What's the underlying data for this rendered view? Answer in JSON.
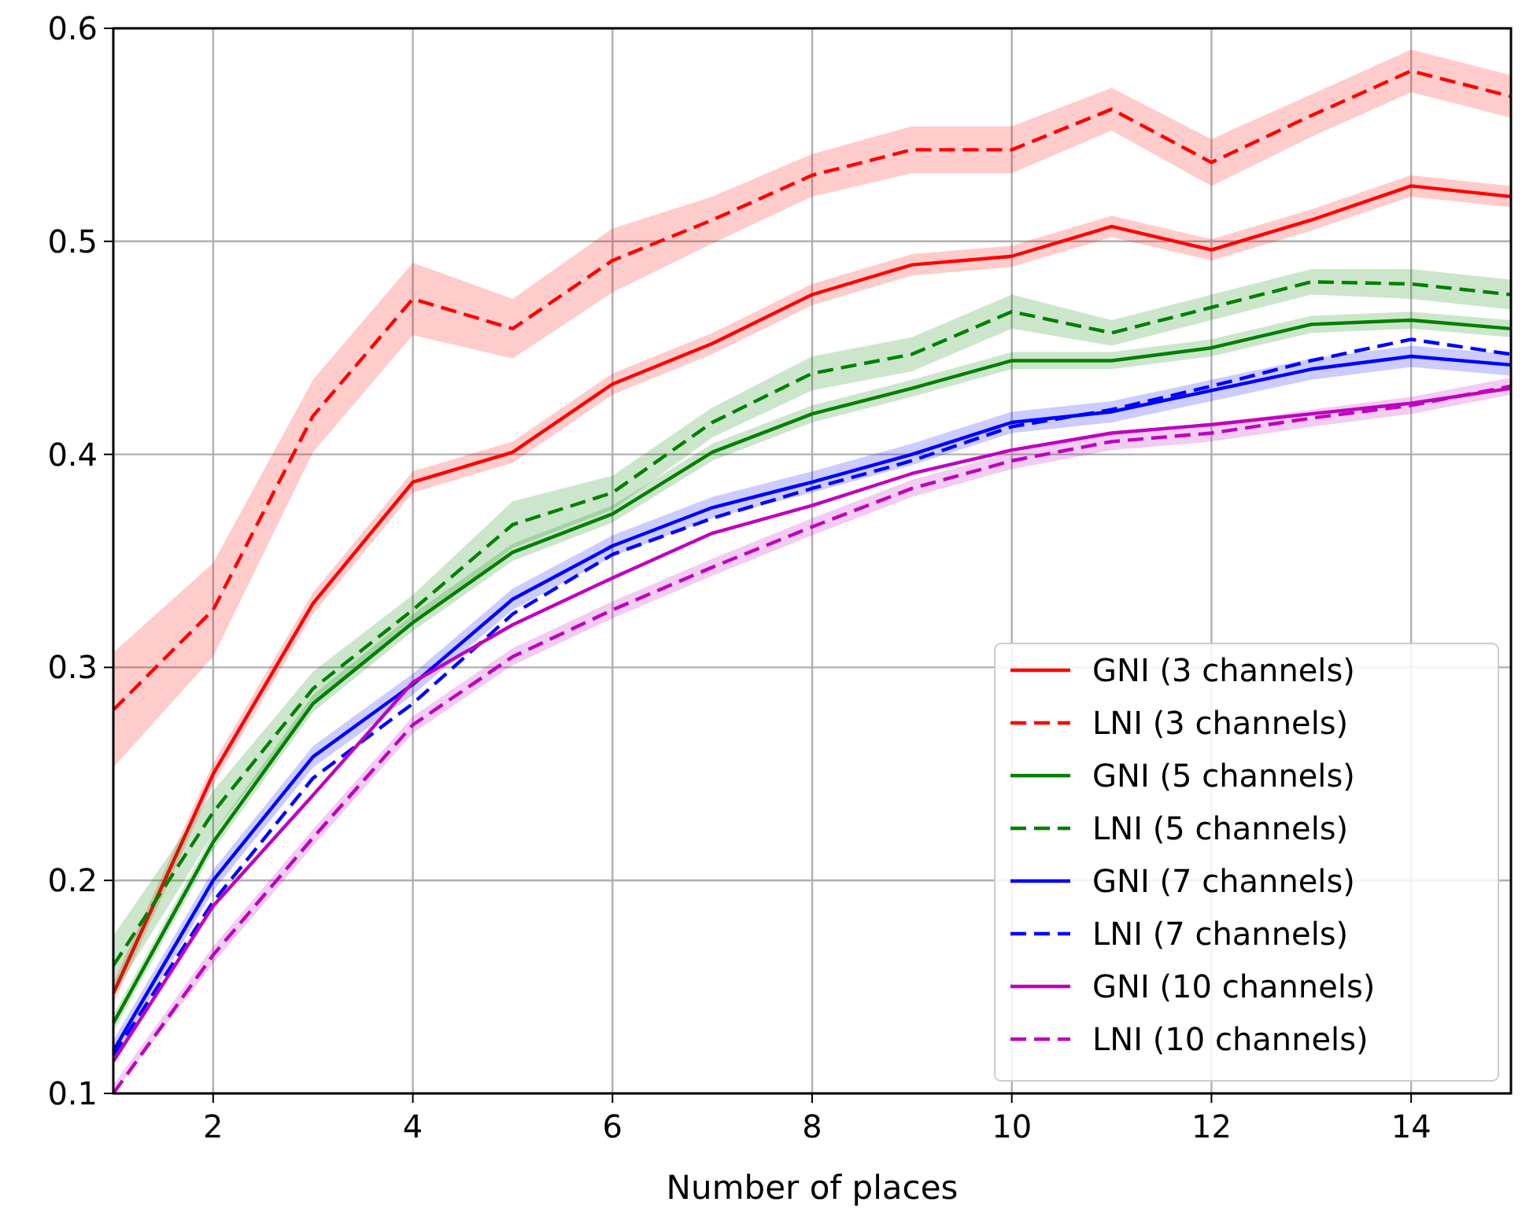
{
  "chart_data": {
    "type": "line",
    "xlabel": "Number of places",
    "x": [
      1,
      2,
      3,
      4,
      5,
      6,
      7,
      8,
      9,
      10,
      11,
      12,
      13,
      14,
      15
    ],
    "xlim": [
      1,
      15
    ],
    "xticks": [
      2,
      4,
      6,
      8,
      10,
      12,
      14
    ],
    "ylim": [
      0.1,
      0.6
    ],
    "yticks": [
      0.1,
      0.2,
      0.3,
      0.4,
      0.5,
      0.6
    ],
    "grid": true,
    "legend": "bottom right",
    "marker": "none",
    "series": [
      {
        "name": "GNI (3 channels)",
        "color": "#ff0000",
        "line_style": "solid",
        "values": [
          0.147,
          0.25,
          0.33,
          0.387,
          0.401,
          0.433,
          0.452,
          0.475,
          0.489,
          0.493,
          0.507,
          0.496,
          0.51,
          0.526,
          0.521
        ],
        "lower": [
          0.142,
          0.245,
          0.325,
          0.382,
          0.396,
          0.428,
          0.447,
          0.47,
          0.484,
          0.488,
          0.502,
          0.491,
          0.505,
          0.521,
          0.516
        ],
        "upper": [
          0.152,
          0.255,
          0.335,
          0.392,
          0.406,
          0.438,
          0.457,
          0.48,
          0.494,
          0.498,
          0.512,
          0.501,
          0.515,
          0.531,
          0.526
        ]
      },
      {
        "name": "LNI (3 channels)",
        "color": "#ff0000",
        "line_style": "dashed",
        "values": [
          0.28,
          0.327,
          0.418,
          0.473,
          0.459,
          0.491,
          0.51,
          0.531,
          0.543,
          0.543,
          0.562,
          0.537,
          0.559,
          0.58,
          0.568
        ],
        "lower": [
          0.253,
          0.305,
          0.401,
          0.456,
          0.445,
          0.476,
          0.499,
          0.521,
          0.532,
          0.532,
          0.552,
          0.526,
          0.549,
          0.57,
          0.558
        ],
        "upper": [
          0.307,
          0.349,
          0.435,
          0.49,
          0.473,
          0.506,
          0.521,
          0.541,
          0.554,
          0.554,
          0.572,
          0.548,
          0.569,
          0.59,
          0.578
        ]
      },
      {
        "name": "GNI (5 channels)",
        "color": "#008000",
        "line_style": "solid",
        "values": [
          0.133,
          0.218,
          0.283,
          0.321,
          0.354,
          0.372,
          0.401,
          0.419,
          0.431,
          0.444,
          0.444,
          0.45,
          0.461,
          0.463,
          0.459
        ],
        "lower": [
          0.129,
          0.214,
          0.279,
          0.317,
          0.35,
          0.368,
          0.397,
          0.415,
          0.427,
          0.44,
          0.44,
          0.446,
          0.457,
          0.459,
          0.455
        ],
        "upper": [
          0.137,
          0.222,
          0.287,
          0.325,
          0.358,
          0.376,
          0.405,
          0.423,
          0.435,
          0.448,
          0.448,
          0.454,
          0.465,
          0.467,
          0.463
        ]
      },
      {
        "name": "LNI (5 channels)",
        "color": "#008000",
        "line_style": "dashed",
        "values": [
          0.16,
          0.232,
          0.29,
          0.327,
          0.367,
          0.382,
          0.415,
          0.438,
          0.447,
          0.467,
          0.457,
          0.469,
          0.481,
          0.48,
          0.475
        ],
        "lower": [
          0.146,
          0.222,
          0.282,
          0.32,
          0.356,
          0.374,
          0.408,
          0.43,
          0.439,
          0.459,
          0.451,
          0.463,
          0.475,
          0.473,
          0.468
        ],
        "upper": [
          0.174,
          0.242,
          0.298,
          0.334,
          0.378,
          0.39,
          0.422,
          0.446,
          0.455,
          0.475,
          0.463,
          0.475,
          0.487,
          0.487,
          0.482
        ]
      },
      {
        "name": "GNI (7 channels)",
        "color": "#0000ff",
        "line_style": "solid",
        "values": [
          0.12,
          0.2,
          0.258,
          0.292,
          0.332,
          0.357,
          0.375,
          0.387,
          0.4,
          0.415,
          0.42,
          0.43,
          0.44,
          0.446,
          0.442
        ],
        "lower": [
          0.115,
          0.195,
          0.253,
          0.287,
          0.327,
          0.352,
          0.37,
          0.382,
          0.395,
          0.41,
          0.415,
          0.425,
          0.435,
          0.441,
          0.437
        ],
        "upper": [
          0.125,
          0.205,
          0.263,
          0.297,
          0.337,
          0.362,
          0.38,
          0.392,
          0.405,
          0.42,
          0.425,
          0.435,
          0.445,
          0.451,
          0.447
        ]
      },
      {
        "name": "LNI (7 channels)",
        "color": "#0000ff",
        "line_style": "dashed",
        "values": [
          0.118,
          0.19,
          0.248,
          0.283,
          0.325,
          0.353,
          0.37,
          0.384,
          0.397,
          0.413,
          0.421,
          0.432,
          0.444,
          0.454,
          0.447
        ]
      },
      {
        "name": "GNI (10 channels)",
        "color": "#bf00bf",
        "line_style": "solid",
        "values": [
          0.115,
          0.188,
          0.24,
          0.293,
          0.32,
          0.342,
          0.363,
          0.376,
          0.391,
          0.402,
          0.41,
          0.414,
          0.419,
          0.424,
          0.431
        ]
      },
      {
        "name": "LNI (10 channels)",
        "color": "#bf00bf",
        "line_style": "dashed",
        "values": [
          0.1,
          0.165,
          0.22,
          0.273,
          0.305,
          0.327,
          0.347,
          0.366,
          0.384,
          0.397,
          0.406,
          0.41,
          0.417,
          0.423,
          0.432
        ],
        "lower": [
          0.1,
          0.161,
          0.216,
          0.269,
          0.301,
          0.323,
          0.343,
          0.362,
          0.38,
          0.393,
          0.402,
          0.406,
          0.413,
          0.419,
          0.428
        ],
        "upper": [
          0.104,
          0.169,
          0.224,
          0.277,
          0.309,
          0.331,
          0.351,
          0.37,
          0.388,
          0.401,
          0.41,
          0.414,
          0.421,
          0.427,
          0.436
        ]
      }
    ]
  }
}
